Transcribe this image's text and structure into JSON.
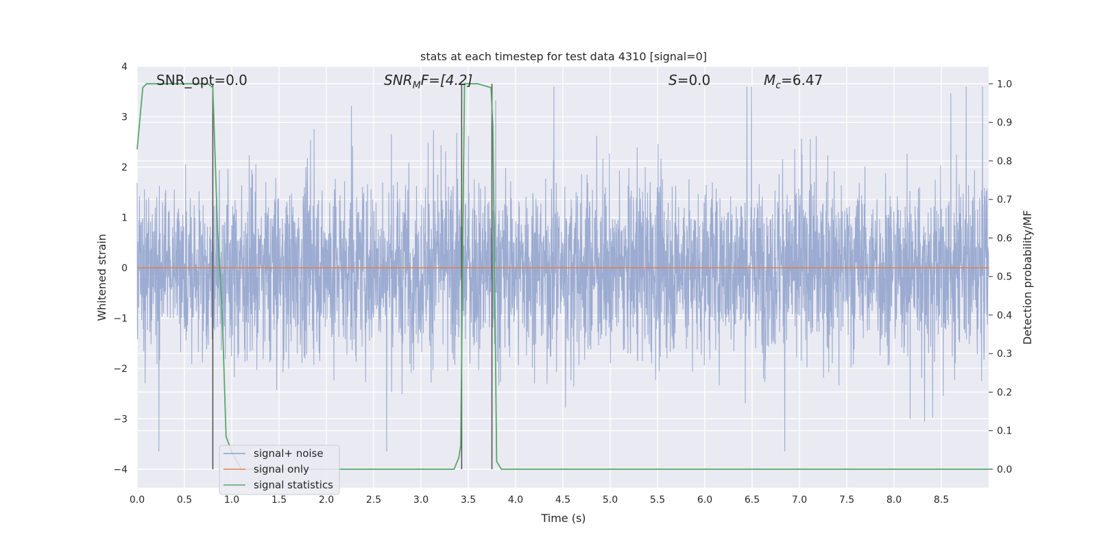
{
  "chart_data": {
    "type": "line",
    "title": "stats at each timestep for test data 4310 [signal=0]",
    "xlabel": "Time (s)",
    "ylabel": "Whitened strain",
    "ylabel_right": "Detection probability/MF",
    "xlim": [
      0,
      9.0
    ],
    "ylim": [
      -4.37,
      4.0
    ],
    "ylim_right": [
      -0.048,
      1.045
    ],
    "x_ticks": [
      "0.0",
      "0.5",
      "1.0",
      "1.5",
      "2.0",
      "2.5",
      "3.0",
      "3.5",
      "4.0",
      "4.5",
      "5.0",
      "5.5",
      "6.0",
      "6.5",
      "7.0",
      "7.5",
      "8.0",
      "8.5"
    ],
    "y_ticks": [
      "4",
      "3",
      "2",
      "1",
      "0",
      "−1",
      "−2",
      "−3",
      "−4"
    ],
    "y_right_ticks": [
      "1.0",
      "0.9",
      "0.8",
      "0.7",
      "0.6",
      "0.5",
      "0.4",
      "0.3",
      "0.2",
      "0.1",
      "0.0"
    ],
    "grid": true,
    "legend_position": "lower-left",
    "annotations": {
      "snr_opt": "SNR_opt=0.0",
      "snr_mf_main": "SNR",
      "snr_mf_sub": "M",
      "snr_mf_rest": "F=[4.2]",
      "s_main": "S",
      "s_rest": "=0.0",
      "mc_main": "M",
      "mc_sub": "c",
      "mc_rest": "=6.47"
    },
    "series": [
      {
        "name": "signal+ noise",
        "color": "#8da0cb",
        "note_style": "dense noise, approx within ±1.5 with peaks to ±3.6",
        "envelope": {
          "typical_abs": 1.3,
          "max_up": 3.6,
          "max_down": -3.65,
          "sample_rate": 2048
        }
      },
      {
        "name": "signal only",
        "color": "#dd8452",
        "x": [
          0,
          9.0
        ],
        "y": [
          0,
          0
        ]
      },
      {
        "name": "signal statistics",
        "color": "#55a868",
        "x": [
          0.0,
          0.06,
          0.1,
          0.2,
          0.5,
          0.75,
          0.8,
          0.85,
          0.9,
          0.94,
          1.0,
          1.1,
          1.5,
          2.0,
          2.5,
          3.0,
          3.35,
          3.4,
          3.42,
          3.46,
          3.5,
          3.6,
          3.74,
          3.76,
          3.78,
          3.8,
          3.85,
          4.0,
          5.0,
          6.0,
          7.0,
          8.0,
          9.0
        ],
        "y": [
          0.83,
          0.99,
          1.0,
          1.0,
          1.0,
          1.0,
          0.99,
          0.62,
          0.4,
          0.085,
          0.045,
          0.0,
          0.0,
          0.0,
          0.0,
          0.0,
          0.0,
          0.03,
          0.062,
          1.0,
          1.0,
          1.0,
          0.99,
          0.89,
          0.47,
          0.02,
          0.0,
          0.0,
          0.0,
          0.0,
          0.0,
          0.0,
          0.0
        ]
      }
    ],
    "vlines": [
      0.8,
      3.43,
      3.75
    ]
  }
}
